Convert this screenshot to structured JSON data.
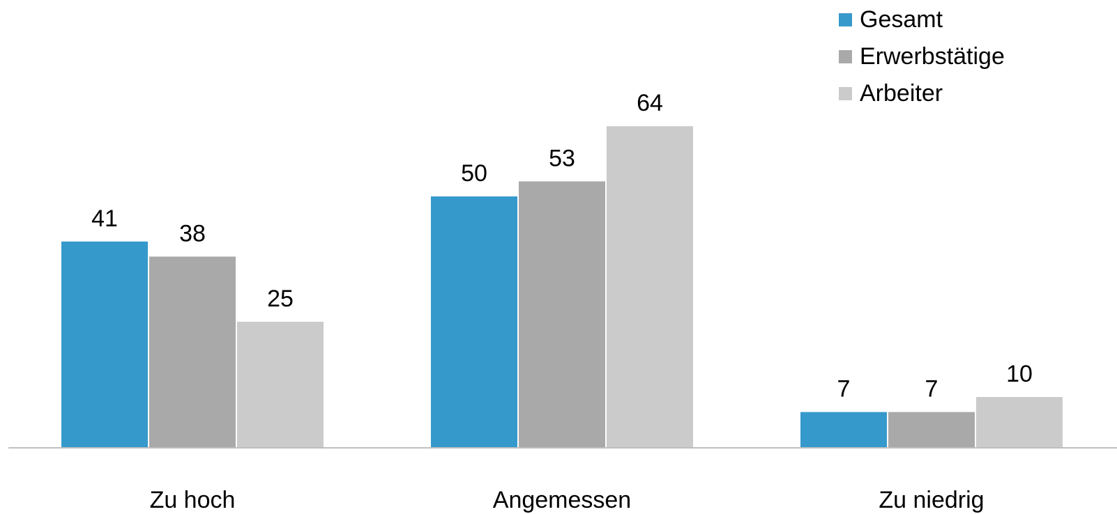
{
  "chart_data": {
    "type": "bar",
    "categories": [
      "Zu hoch",
      "Angemessen",
      "Zu niedrig"
    ],
    "series": [
      {
        "name": "Gesamt",
        "values": [
          41,
          50,
          7
        ],
        "color": "#3699cc"
      },
      {
        "name": "Erwerbstätige",
        "values": [
          38,
          53,
          7
        ],
        "color": "#a9a9a9"
      },
      {
        "name": "Arbeiter",
        "values": [
          25,
          64,
          10
        ],
        "color": "#cbcbcb"
      }
    ],
    "title": "",
    "xlabel": "",
    "ylabel": "",
    "ylim": [
      0,
      100
    ],
    "grid": false,
    "legend_position": "top-right",
    "axis_color": "#bfbfbf"
  }
}
